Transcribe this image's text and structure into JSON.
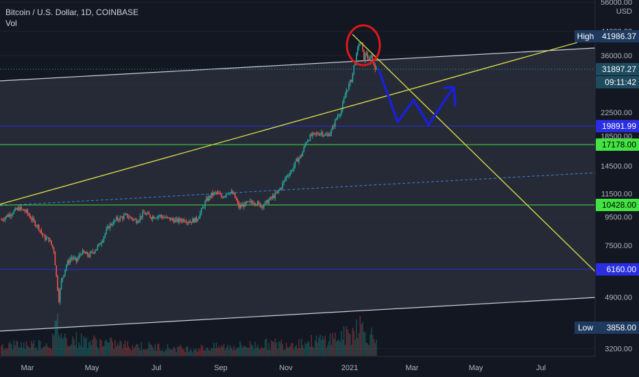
{
  "header": {
    "symbol_line": "Bitcoin / U.S. Dollar, 1D, COINBASE",
    "indicator": "Vol"
  },
  "colors": {
    "background": "#131722",
    "up": "#26a69a",
    "down": "#ef5350",
    "channel_line": "#cfd2d8",
    "channel_fill": "#2a2e39",
    "trend_yellow": "#d4d64a",
    "support_green": "#42e342",
    "level_blue": "#2a2ee0",
    "midline_dash": "#3b7fd6",
    "annotation_red": "#e01818",
    "annotation_blue": "#1a20d8",
    "axis_text": "#b2b5be",
    "grid": "#1e222d",
    "current_price_bg": "#1f4b5f"
  },
  "chart_data": {
    "type": "candlestick",
    "title": "Bitcoin / U.S. Dollar, 1D, COINBASE",
    "y_scale": "log",
    "ylim": [
      3000,
      57000
    ],
    "x_ticks": [
      "Mar",
      "May",
      "Jul",
      "Sep",
      "Nov",
      "2021",
      "Mar",
      "May",
      "Jul"
    ],
    "y_ticks": [
      "56000.00",
      "44000.00",
      "36000.00",
      "28500.00",
      "22500.00",
      "18500.00",
      "14500.00",
      "11500.00",
      "9500.00",
      "7500.00",
      "6000.00",
      "4900.00",
      "3200.00"
    ],
    "currency": "USD",
    "labels": [
      {
        "name": "high",
        "prefix": "High",
        "value": "41986.37"
      },
      {
        "name": "current",
        "value": "31897.27",
        "countdown": "09:11:42"
      },
      {
        "name": "level-blue-upper",
        "value": "19891.99"
      },
      {
        "name": "level-green-upper",
        "value": "17178.00"
      },
      {
        "name": "level-green-lower",
        "value": "10428.00"
      },
      {
        "name": "level-blue-lower",
        "value": "6160.00"
      },
      {
        "name": "low",
        "prefix": "Low",
        "value": "3858.00"
      }
    ],
    "price_path": [
      [
        0,
        9300
      ],
      [
        8,
        9800
      ],
      [
        14,
        10200
      ],
      [
        20,
        9900
      ],
      [
        26,
        9100
      ],
      [
        30,
        8700
      ],
      [
        34,
        8000
      ],
      [
        38,
        7900
      ],
      [
        42,
        7200
      ],
      [
        44,
        5800
      ],
      [
        46,
        4800
      ],
      [
        48,
        5600
      ],
      [
        52,
        6400
      ],
      [
        56,
        6800
      ],
      [
        60,
        6600
      ],
      [
        64,
        7100
      ],
      [
        70,
        6900
      ],
      [
        78,
        7500
      ],
      [
        86,
        8800
      ],
      [
        92,
        9300
      ],
      [
        100,
        9600
      ],
      [
        108,
        9200
      ],
      [
        114,
        9800
      ],
      [
        120,
        9500
      ],
      [
        126,
        9600
      ],
      [
        132,
        9400
      ],
      [
        140,
        9200
      ],
      [
        146,
        9300
      ],
      [
        150,
        9150
      ],
      [
        156,
        9300
      ],
      [
        160,
        10000
      ],
      [
        164,
        10900
      ],
      [
        168,
        11400
      ],
      [
        172,
        11600
      ],
      [
        176,
        11200
      ],
      [
        182,
        11700
      ],
      [
        186,
        11400
      ],
      [
        190,
        10300
      ],
      [
        196,
        10600
      ],
      [
        202,
        10800
      ],
      [
        208,
        10400
      ],
      [
        212,
        10700
      ],
      [
        216,
        11100
      ],
      [
        220,
        11500
      ],
      [
        224,
        12200
      ],
      [
        228,
        13300
      ],
      [
        232,
        13900
      ],
      [
        236,
        15100
      ],
      [
        240,
        15800
      ],
      [
        244,
        17800
      ],
      [
        248,
        18600
      ],
      [
        252,
        18800
      ],
      [
        256,
        19100
      ],
      [
        260,
        18500
      ],
      [
        264,
        19300
      ],
      [
        268,
        21500
      ],
      [
        272,
        23000
      ],
      [
        276,
        27000
      ],
      [
        280,
        29500
      ],
      [
        282,
        33000
      ],
      [
        284,
        36000
      ],
      [
        286,
        40000
      ],
      [
        288,
        39500
      ],
      [
        290,
        35000
      ],
      [
        292,
        37000
      ],
      [
        294,
        34000
      ],
      [
        296,
        36500
      ],
      [
        298,
        33500
      ],
      [
        300,
        31897.27
      ]
    ],
    "volume_path": [
      [
        0,
        0.3
      ],
      [
        40,
        0.35
      ],
      [
        45,
        0.9
      ],
      [
        50,
        0.5
      ],
      [
        100,
        0.3
      ],
      [
        150,
        0.2
      ],
      [
        200,
        0.3
      ],
      [
        250,
        0.4
      ],
      [
        280,
        0.6
      ],
      [
        285,
        1.0
      ],
      [
        290,
        0.7
      ],
      [
        300,
        0.5
      ]
    ]
  }
}
